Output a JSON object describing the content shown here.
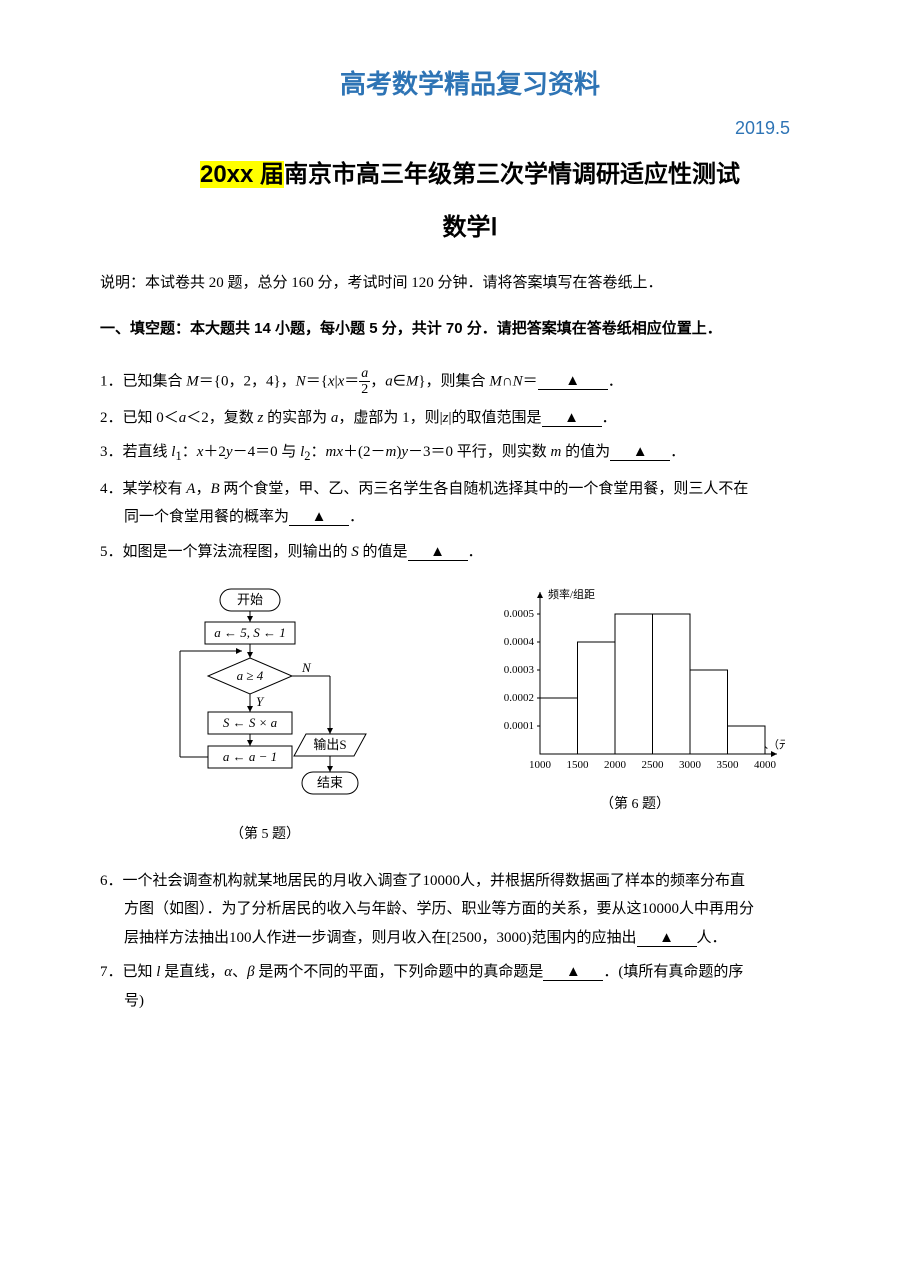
{
  "header": {
    "title": "高考数学精品复习资料",
    "date": "2019.5"
  },
  "main_title": {
    "highlight": "20xx 届",
    "rest": "南京市高三年级第三次学情调研适应性测试"
  },
  "sub_title": "数学Ⅰ",
  "instruction": "说明：本试卷共 20 题，总分 160 分，考试时间 120 分钟．请将答案填写在答卷纸上．",
  "section_head": "一、填空题：本大题共 14 小题，每小题 5 分，共计 70 分．请把答案填在答卷纸相应位置上．",
  "blank_symbol": "▲",
  "questions": {
    "q1_a": "1．已知集合 ",
    "q1_b": "＝{0，2，4}，",
    "q1_c": "＝{",
    "q1_d": "|",
    "q1_e": "＝",
    "q1_f": "，",
    "q1_g": "∈",
    "q1_h": "}，则集合 ",
    "q1_i": "∩",
    "q1_j": "＝",
    "q1_k": "．",
    "q2_a": "2．已知 0＜",
    "q2_b": "＜2，复数 ",
    "q2_c": " 的实部为 ",
    "q2_d": "，虚部为 1，则|",
    "q2_e": "|的取值范围是",
    "q2_f": "．",
    "q3_a": "3．若直线 ",
    "q3_b": "：",
    "q3_c": "＋2",
    "q3_d": "－4＝0 与 ",
    "q3_e": "：",
    "q3_f": "＋(2－",
    "q3_g": ")",
    "q3_h": "－3＝0 平行，则实数 ",
    "q3_i": " 的值为",
    "q3_j": "．",
    "q4_a": "4．某学校有 ",
    "q4_b": "，",
    "q4_c": " 两个食堂，甲、乙、丙三名学生各自随机选择其中的一个食堂用餐，则三人不在",
    "q4_d": "同一个食堂用餐的概率为",
    "q4_e": "．",
    "q5_a": "5．如图是一个算法流程图，则输出的 ",
    "q5_b": " 的值是",
    "q5_c": "．",
    "q6_a": "6．一个社会调查机构就某地居民的月收入调查了10000人，并根据所得数据画了样本的频率分布直",
    "q6_b": "方图（如图）．为了分析居民的收入与年龄、学历、职业等方面的关系，要从这10000人中再用分",
    "q6_c": "层抽样方法抽出100人作进一步调查，则月收入在[2500，3000)范围内的应抽出",
    "q6_d": "人．",
    "q7_a": "7．已知 ",
    "q7_b": " 是直线，",
    "q7_c": "、",
    "q7_d": " 是两个不同的平面，下列命题中的真命题是",
    "q7_e": "．(填所有真命题的序",
    "q7_f": "号)"
  },
  "flowchart": {
    "start": "开始",
    "init": "a ← 5, S ← 1",
    "cond": "a ≥ 4",
    "yes": "Y",
    "no": "N",
    "step1": "S ← S × a",
    "step2": "a ← a − 1",
    "output": "输出S",
    "end": "结束",
    "caption": "（第 5 题）",
    "colors": {
      "stroke": "#000000",
      "text": "#000000",
      "bg": "#ffffff"
    },
    "fontsize": 13
  },
  "histogram": {
    "caption": "（第 6 题）",
    "ylabel": "频率/组距",
    "xlabel": "月收入（元）",
    "yticks": [
      "0.0001",
      "0.0002",
      "0.0003",
      "0.0004",
      "0.0005"
    ],
    "xticks": [
      "1000",
      "1500",
      "2000",
      "2500",
      "3000",
      "3500",
      "4000"
    ],
    "bars": [
      {
        "x0": 1000,
        "x1": 1500,
        "h": 0.0002
      },
      {
        "x0": 1500,
        "x1": 2000,
        "h": 0.0004
      },
      {
        "x0": 2000,
        "x1": 2500,
        "h": 0.0005
      },
      {
        "x0": 2500,
        "x1": 3000,
        "h": 0.0005
      },
      {
        "x0": 3000,
        "x1": 3500,
        "h": 0.0003
      },
      {
        "x0": 3500,
        "x1": 4000,
        "h": 0.0001
      }
    ],
    "colors": {
      "axis": "#000000",
      "bar_stroke": "#000000",
      "bar_fill": "#ffffff",
      "text": "#000000"
    },
    "ylim": [
      0,
      0.00055
    ],
    "fontsize": 11
  }
}
